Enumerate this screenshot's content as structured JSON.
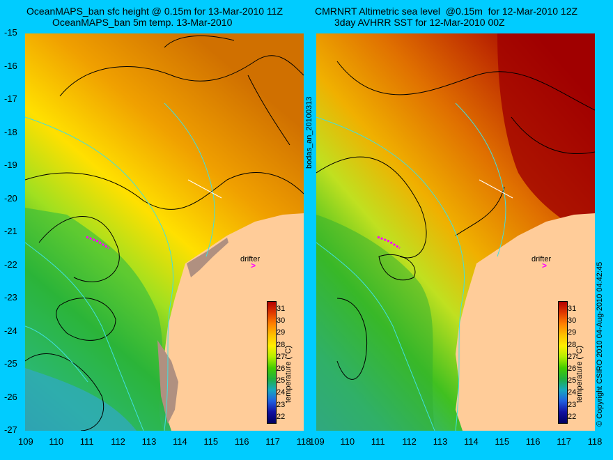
{
  "left_title": {
    "line1": "OceanMAPS_ban sfc height @ 0.15m for 13-Mar-2010 11Z",
    "line2": "OceanMAPS_ban 5m temp. 13-Mar-2010"
  },
  "right_title": {
    "line1": "CMRNRT Altimetric sea level  @0.15m  for 12-Mar-2010 12Z",
    "line2": "3day AVHRR SST for 12-Mar-2010 00Z"
  },
  "y_ticks": [
    "-15",
    "-16",
    "-17",
    "-18",
    "-19",
    "-20",
    "-21",
    "-22",
    "-23",
    "-24",
    "-25",
    "-26",
    "-27"
  ],
  "x_ticks_left": [
    "109",
    "110",
    "111",
    "112",
    "113",
    "114",
    "115",
    "116",
    "117",
    "118"
  ],
  "x_ticks_right": [
    "109",
    "110",
    "111",
    "112",
    "113",
    "114",
    "115",
    "116",
    "117",
    "118"
  ],
  "middle_label": "bodas_an_20100313",
  "copyright": "© Copyright CSIRO 2010  04-Aug-2010 04:42:45",
  "drifter_label": "drifter",
  "colorbar": {
    "labels": [
      "31",
      "30",
      "29",
      "28",
      "27",
      "26",
      "25",
      "24",
      "23",
      "22"
    ],
    "unit": "temperature (°C)",
    "colors": [
      "#b30000",
      "#e03a00",
      "#ff8000",
      "#ffbf00",
      "#ffee00",
      "#b4ee00",
      "#44cc00",
      "#20b040",
      "#18a8c0",
      "#2060e0",
      "#1010a0",
      "#000060"
    ]
  },
  "land_color": "#ffcc99"
}
